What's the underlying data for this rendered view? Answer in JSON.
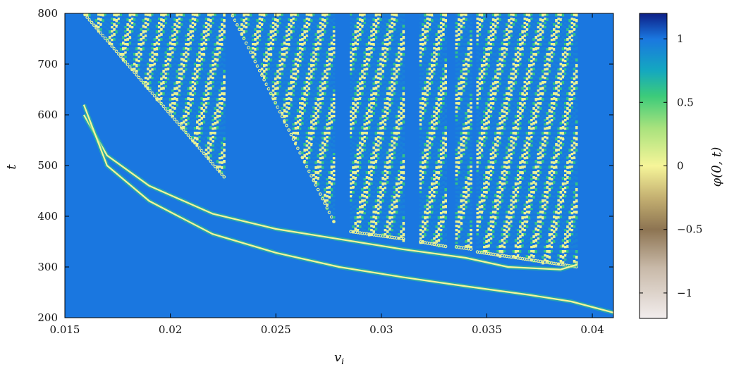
{
  "chart_data": {
    "type": "heatmap",
    "title": "",
    "xlabel": "v_i",
    "ylabel": "t",
    "xlim": [
      0.015,
      0.041
    ],
    "ylim": [
      200,
      800
    ],
    "x_ticks": [
      {
        "value": 0.015,
        "label": "0.015"
      },
      {
        "value": 0.02,
        "label": "0.02"
      },
      {
        "value": 0.025,
        "label": "0.025"
      },
      {
        "value": 0.03,
        "label": "0.03"
      },
      {
        "value": 0.035,
        "label": "0.035"
      },
      {
        "value": 0.04,
        "label": "0.04"
      }
    ],
    "y_ticks": [
      {
        "value": 200,
        "label": "200"
      },
      {
        "value": 300,
        "label": "300"
      },
      {
        "value": 400,
        "label": "400"
      },
      {
        "value": 500,
        "label": "500"
      },
      {
        "value": 600,
        "label": "600"
      },
      {
        "value": 700,
        "label": "700"
      },
      {
        "value": 800,
        "label": "800"
      }
    ],
    "grid": false,
    "colorbar": {
      "label": "φ(0, t)",
      "range": [
        -1.2,
        1.2
      ],
      "ticks": [
        {
          "value": 1,
          "label": "1"
        },
        {
          "value": 0.5,
          "label": "0.5"
        },
        {
          "value": 0,
          "label": "0"
        },
        {
          "value": -0.5,
          "label": "−0.5"
        },
        {
          "value": -1,
          "label": "−1"
        }
      ],
      "colormap": [
        {
          "value": -1.2,
          "color": "#f2eded"
        },
        {
          "value": -0.8,
          "color": "#c8b9a8"
        },
        {
          "value": -0.5,
          "color": "#8d7452"
        },
        {
          "value": -0.25,
          "color": "#c4b071"
        },
        {
          "value": 0.0,
          "color": "#f6f599"
        },
        {
          "value": 0.3,
          "color": "#a8e27d"
        },
        {
          "value": 0.55,
          "color": "#3ccb7a"
        },
        {
          "value": 0.75,
          "color": "#14a8c0"
        },
        {
          "value": 1.0,
          "color": "#1a77e0"
        },
        {
          "value": 1.2,
          "color": "#0d1f86"
        }
      ]
    },
    "background_value": 1.0,
    "bounce_windows": [
      {
        "v_start": 0.0159,
        "v_end": 0.0226,
        "t_onset_left": 800,
        "t_onset_right": 475
      },
      {
        "v_start": 0.0229,
        "v_end": 0.0278,
        "t_onset_left": 800,
        "t_onset_right": 385
      },
      {
        "v_start": 0.0285,
        "v_end": 0.0311,
        "t_onset_left": 370,
        "t_onset_right": 355
      },
      {
        "v_start": 0.0318,
        "v_end": 0.0331,
        "t_onset_left": 350,
        "t_onset_right": 340
      },
      {
        "v_start": 0.0335,
        "v_end": 0.0343,
        "t_onset_left": 340,
        "t_onset_right": 335
      },
      {
        "v_start": 0.0345,
        "v_end": 0.0393,
        "t_onset_left": 330,
        "t_onset_right": 300
      }
    ],
    "trajectory_curves": [
      {
        "name": "",
        "points": [
          [
            0.0159,
            600
          ],
          [
            0.017,
            520
          ],
          [
            0.019,
            460
          ],
          [
            0.022,
            405
          ],
          [
            0.025,
            375
          ],
          [
            0.028,
            355
          ],
          [
            0.031,
            335
          ],
          [
            0.034,
            318
          ],
          [
            0.036,
            300
          ],
          [
            0.0385,
            295
          ],
          [
            0.0393,
            305
          ]
        ]
      },
      {
        "name": "",
        "points": [
          [
            0.0159,
            620
          ],
          [
            0.017,
            500
          ],
          [
            0.019,
            430
          ],
          [
            0.022,
            365
          ],
          [
            0.025,
            328
          ],
          [
            0.028,
            300
          ],
          [
            0.031,
            280
          ],
          [
            0.034,
            262
          ],
          [
            0.037,
            245
          ],
          [
            0.039,
            232
          ],
          [
            0.041,
            210
          ]
        ]
      }
    ]
  }
}
